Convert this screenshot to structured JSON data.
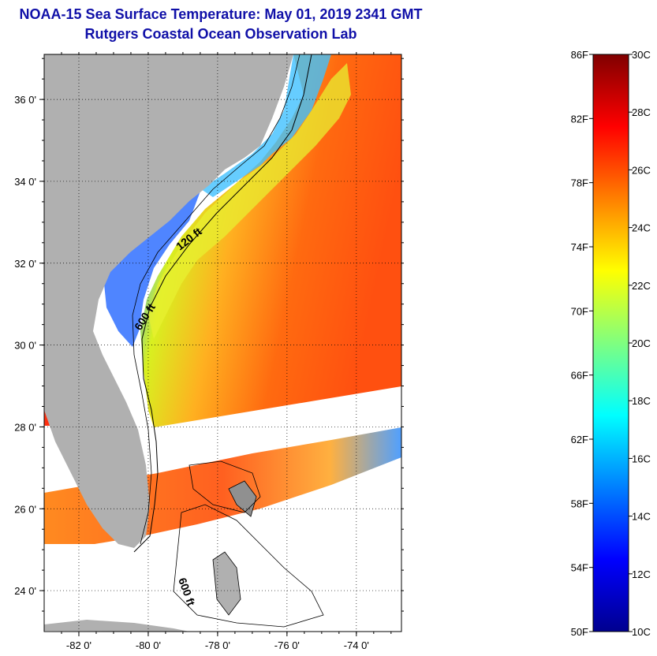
{
  "title_line1": "NOAA-15 Sea Surface Temperature:  May 01, 2019 2341 GMT",
  "title_line2": "Rutgers Coastal Ocean Observation Lab",
  "map": {
    "lat_ticks": [
      {
        "value": 36,
        "label": "36 0'"
      },
      {
        "value": 34,
        "label": "34 0'"
      },
      {
        "value": 32,
        "label": "32 0'"
      },
      {
        "value": 30,
        "label": "30 0'"
      },
      {
        "value": 28,
        "label": "28 0'"
      },
      {
        "value": 26,
        "label": "26 0'"
      },
      {
        "value": 24,
        "label": "24 0'"
      }
    ],
    "lon_ticks": [
      {
        "value": -82,
        "label": "-82 0'"
      },
      {
        "value": -80,
        "label": "-80 0'"
      },
      {
        "value": -78,
        "label": "-78 0'"
      },
      {
        "value": -76,
        "label": "-76 0'"
      },
      {
        "value": -74,
        "label": "-74 0'"
      }
    ],
    "lat_range": [
      23,
      37.1
    ],
    "lon_range": [
      -83,
      -72.7
    ],
    "contour_labels": [
      {
        "text": "120 ft"
      },
      {
        "text": "600 ft"
      },
      {
        "text": "600 ft"
      }
    ],
    "colors": {
      "land": "#b0b0b0",
      "background": "#ffffff"
    }
  },
  "colorbar": {
    "fahrenheit": [
      "86F",
      "82F",
      "78F",
      "74F",
      "70F",
      "66F",
      "62F",
      "58F",
      "54F",
      "50F"
    ],
    "celsius": [
      "30C",
      "28C",
      "26C",
      "24C",
      "22C",
      "20C",
      "18C",
      "16C",
      "14C",
      "12C",
      "10C"
    ],
    "range_f": [
      50,
      86
    ],
    "range_c": [
      10,
      30
    ],
    "colormap": "jet"
  }
}
